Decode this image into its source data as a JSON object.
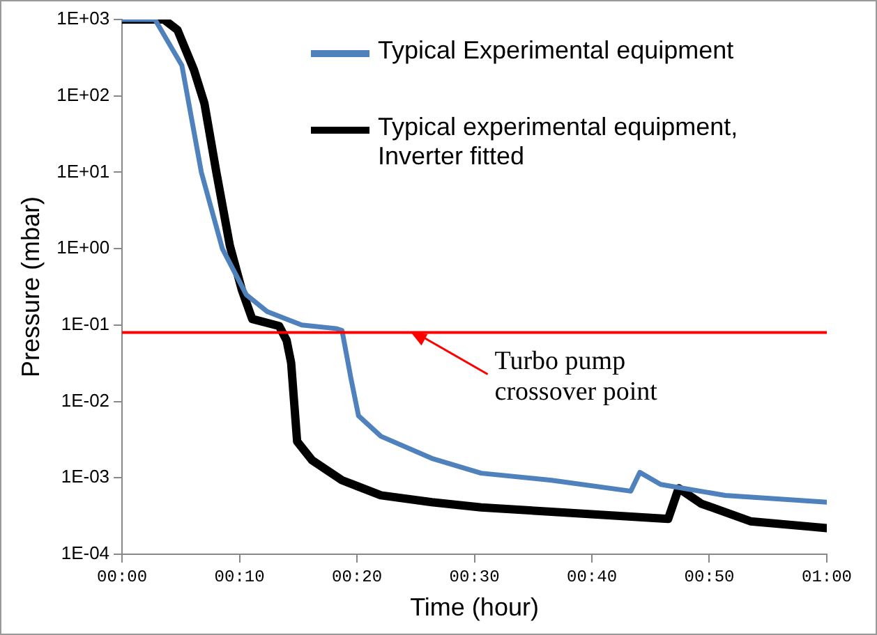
{
  "chart_data": {
    "type": "line",
    "xlabel": "Time (hour)",
    "ylabel": "Pressure (mbar)",
    "xlim": [
      0,
      1
    ],
    "xticks": [
      {
        "value": 0,
        "label": "00:00"
      },
      {
        "value": 0.1667,
        "label": "00:10"
      },
      {
        "value": 0.3333,
        "label": "00:20"
      },
      {
        "value": 0.5,
        "label": "00:30"
      },
      {
        "value": 0.6667,
        "label": "00:40"
      },
      {
        "value": 0.8333,
        "label": "00:50"
      },
      {
        "value": 1,
        "label": "01:00"
      }
    ],
    "ylim": [
      0.0001,
      1000
    ],
    "yticks": [
      {
        "value": 1000,
        "label": "1E+03"
      },
      {
        "value": 100,
        "label": "1E+02"
      },
      {
        "value": 10,
        "label": "1E+01"
      },
      {
        "value": 1,
        "label": "1E+00"
      },
      {
        "value": 0.1,
        "label": "1E-01"
      },
      {
        "value": 0.01,
        "label": "1E-02"
      },
      {
        "value": 0.001,
        "label": "1E-03"
      },
      {
        "value": 0.0001,
        "label": "1E-04"
      }
    ],
    "log": "y",
    "grid": false,
    "legend": "top right",
    "marker": "none",
    "line_style": "solid",
    "series": [
      {
        "name": "Typical Experimental equipment",
        "color": "#4f81bd",
        "x": [
          0,
          0.0467,
          0.0849,
          0.1125,
          0.1423,
          0.1762,
          0.2059,
          0.2548,
          0.3036,
          0.3121,
          0.3248,
          0.3355,
          0.3673,
          0.4395,
          0.5096,
          0.6093,
          0.7219,
          0.7346,
          0.7643,
          0.8556,
          1
        ],
        "values": [
          1000,
          1000,
          250,
          10,
          1,
          0.25,
          0.15,
          0.1,
          0.09,
          0.085,
          0.02,
          0.0065,
          0.0035,
          0.0018,
          0.00115,
          0.00093,
          0.00067,
          0.00118,
          0.00082,
          0.00059,
          0.00048
        ]
      },
      {
        "name": "Typical experimental equipment, Inverter fitted",
        "color": "#000000",
        "x": [
          0,
          0.0594,
          0.0786,
          0.1019,
          0.1168,
          0.1338,
          0.1529,
          0.1699,
          0.1847,
          0.2229,
          0.2335,
          0.2399,
          0.2484,
          0.2696,
          0.3121,
          0.3673,
          0.4395,
          0.5096,
          0.6093,
          0.7749,
          0.7898,
          0.8217,
          0.8917,
          1
        ],
        "values": [
          1000,
          1000,
          730,
          220,
          80,
          10,
          1.1,
          0.29,
          0.12,
          0.097,
          0.063,
          0.032,
          0.003,
          0.0017,
          0.00093,
          0.00059,
          0.00048,
          0.00041,
          0.00036,
          0.00029,
          0.00073,
          0.00046,
          0.00027,
          0.00022
        ]
      }
    ],
    "ref_lines": [
      {
        "axis": "y",
        "value": 0.08,
        "color": "#ff0000"
      }
    ],
    "annotations": [
      {
        "text": "Turbo pump crossover point",
        "x": 0.41,
        "y": 0.08
      }
    ]
  }
}
